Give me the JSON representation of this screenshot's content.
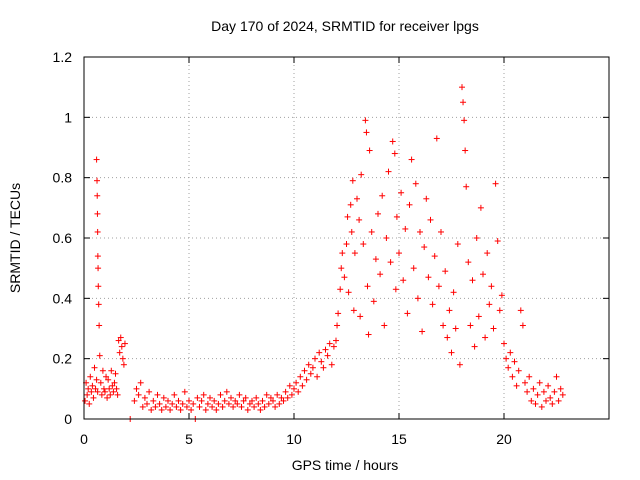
{
  "chart_data": {
    "type": "scatter",
    "title": "Day 170 of 2024, SRMTID for receiver lpgs",
    "xlabel": "GPS time / hours",
    "ylabel": "SRMTID / TECUs",
    "xlim": [
      0,
      25
    ],
    "ylim": [
      0,
      1.2
    ],
    "xticks": [
      0,
      5,
      10,
      15,
      20
    ],
    "xtick_labels": [
      "0",
      "5",
      "10",
      "15",
      "20"
    ],
    "yticks": [
      0,
      0.2,
      0.4,
      0.6,
      0.8,
      1.0,
      1.2
    ],
    "ytick_labels": [
      "0",
      "0.2",
      "0.4",
      "0.6",
      "0.8",
      "1",
      "1.2"
    ],
    "grid": true,
    "marker": "plus",
    "color": "#ff0000",
    "series": [
      {
        "name": "SRMTID",
        "points": [
          [
            0.05,
            0.06
          ],
          [
            0.1,
            0.12
          ],
          [
            0.15,
            0.08
          ],
          [
            0.2,
            0.1
          ],
          [
            0.25,
            0.05
          ],
          [
            0.3,
            0.14
          ],
          [
            0.35,
            0.09
          ],
          [
            0.4,
            0.11
          ],
          [
            0.45,
            0.07
          ],
          [
            0.5,
            0.17
          ],
          [
            0.55,
            0.1
          ],
          [
            0.6,
            0.13
          ],
          [
            0.65,
            0.09
          ],
          [
            0.6,
            0.86
          ],
          [
            0.62,
            0.79
          ],
          [
            0.63,
            0.74
          ],
          [
            0.64,
            0.68
          ],
          [
            0.65,
            0.62
          ],
          [
            0.66,
            0.54
          ],
          [
            0.67,
            0.5
          ],
          [
            0.68,
            0.44
          ],
          [
            0.7,
            0.38
          ],
          [
            0.72,
            0.31
          ],
          [
            0.75,
            0.21
          ],
          [
            0.8,
            0.12
          ],
          [
            0.85,
            0.08
          ],
          [
            0.9,
            0.16
          ],
          [
            0.95,
            0.1
          ],
          [
            1.0,
            0.09
          ],
          [
            1.05,
            0.14
          ],
          [
            1.1,
            0.07
          ],
          [
            1.15,
            0.13
          ],
          [
            1.2,
            0.1
          ],
          [
            1.25,
            0.08
          ],
          [
            1.3,
            0.16
          ],
          [
            1.35,
            0.11
          ],
          [
            1.4,
            0.09
          ],
          [
            1.45,
            0.12
          ],
          [
            1.5,
            0.15
          ],
          [
            1.55,
            0.1
          ],
          [
            1.6,
            0.08
          ],
          [
            1.65,
            0.26
          ],
          [
            1.7,
            0.22
          ],
          [
            1.75,
            0.27
          ],
          [
            1.8,
            0.24
          ],
          [
            1.85,
            0.2
          ],
          [
            1.9,
            0.18
          ],
          [
            1.95,
            0.25
          ],
          [
            2.2,
            0.0
          ],
          [
            2.4,
            0.06
          ],
          [
            2.5,
            0.1
          ],
          [
            2.6,
            0.08
          ],
          [
            2.7,
            0.12
          ],
          [
            2.8,
            0.04
          ],
          [
            2.9,
            0.07
          ],
          [
            3.0,
            0.05
          ],
          [
            3.1,
            0.09
          ],
          [
            3.2,
            0.03
          ],
          [
            3.3,
            0.06
          ],
          [
            3.4,
            0.04
          ],
          [
            3.5,
            0.08
          ],
          [
            3.6,
            0.05
          ],
          [
            3.7,
            0.03
          ],
          [
            3.8,
            0.07
          ],
          [
            3.9,
            0.04
          ],
          [
            4.0,
            0.06
          ],
          [
            4.1,
            0.03
          ],
          [
            4.2,
            0.05
          ],
          [
            4.3,
            0.08
          ],
          [
            4.4,
            0.04
          ],
          [
            4.5,
            0.06
          ],
          [
            4.6,
            0.03
          ],
          [
            4.7,
            0.05
          ],
          [
            4.8,
            0.09
          ],
          [
            4.9,
            0.04
          ],
          [
            5.0,
            0.06
          ],
          [
            5.1,
            0.03
          ],
          [
            5.2,
            0.05
          ],
          [
            5.3,
            0.0
          ],
          [
            5.4,
            0.07
          ],
          [
            5.5,
            0.04
          ],
          [
            5.6,
            0.06
          ],
          [
            5.7,
            0.08
          ],
          [
            5.8,
            0.03
          ],
          [
            5.9,
            0.05
          ],
          [
            6.0,
            0.07
          ],
          [
            6.1,
            0.04
          ],
          [
            6.2,
            0.06
          ],
          [
            6.3,
            0.03
          ],
          [
            6.4,
            0.05
          ],
          [
            6.5,
            0.08
          ],
          [
            6.6,
            0.04
          ],
          [
            6.7,
            0.06
          ],
          [
            6.8,
            0.09
          ],
          [
            6.9,
            0.05
          ],
          [
            7.0,
            0.07
          ],
          [
            7.1,
            0.04
          ],
          [
            7.2,
            0.06
          ],
          [
            7.3,
            0.05
          ],
          [
            7.4,
            0.08
          ],
          [
            7.5,
            0.04
          ],
          [
            7.6,
            0.06
          ],
          [
            7.7,
            0.07
          ],
          [
            7.8,
            0.03
          ],
          [
            7.9,
            0.05
          ],
          [
            8.0,
            0.06
          ],
          [
            8.1,
            0.04
          ],
          [
            8.2,
            0.07
          ],
          [
            8.3,
            0.05
          ],
          [
            8.4,
            0.03
          ],
          [
            8.5,
            0.06
          ],
          [
            8.6,
            0.04
          ],
          [
            8.7,
            0.08
          ],
          [
            8.8,
            0.05
          ],
          [
            8.9,
            0.07
          ],
          [
            9.0,
            0.06
          ],
          [
            9.1,
            0.04
          ],
          [
            9.2,
            0.08
          ],
          [
            9.3,
            0.05
          ],
          [
            9.4,
            0.07
          ],
          [
            9.5,
            0.06
          ],
          [
            9.6,
            0.09
          ],
          [
            9.7,
            0.07
          ],
          [
            9.8,
            0.11
          ],
          [
            9.9,
            0.08
          ],
          [
            10.0,
            0.1
          ],
          [
            10.1,
            0.12
          ],
          [
            10.2,
            0.09
          ],
          [
            10.3,
            0.14
          ],
          [
            10.4,
            0.11
          ],
          [
            10.5,
            0.16
          ],
          [
            10.6,
            0.13
          ],
          [
            10.7,
            0.18
          ],
          [
            10.8,
            0.15
          ],
          [
            10.9,
            0.17
          ],
          [
            11.0,
            0.2
          ],
          [
            11.1,
            0.14
          ],
          [
            11.2,
            0.22
          ],
          [
            11.3,
            0.19
          ],
          [
            11.4,
            0.17
          ],
          [
            11.5,
            0.23
          ],
          [
            11.6,
            0.21
          ],
          [
            11.7,
            0.25
          ],
          [
            11.8,
            0.18
          ],
          [
            11.9,
            0.24
          ],
          [
            12.0,
            0.26
          ],
          [
            12.05,
            0.31
          ],
          [
            12.1,
            0.35
          ],
          [
            12.2,
            0.43
          ],
          [
            12.25,
            0.5
          ],
          [
            12.3,
            0.55
          ],
          [
            12.4,
            0.47
          ],
          [
            12.5,
            0.58
          ],
          [
            12.55,
            0.67
          ],
          [
            12.6,
            0.42
          ],
          [
            12.7,
            0.71
          ],
          [
            12.75,
            0.62
          ],
          [
            12.8,
            0.79
          ],
          [
            12.85,
            0.36
          ],
          [
            12.9,
            0.55
          ],
          [
            13.0,
            0.73
          ],
          [
            13.1,
            0.66
          ],
          [
            13.15,
            0.34
          ],
          [
            13.2,
            0.81
          ],
          [
            13.3,
            0.58
          ],
          [
            13.4,
            0.99
          ],
          [
            13.45,
            0.95
          ],
          [
            13.5,
            0.44
          ],
          [
            13.55,
            0.28
          ],
          [
            13.6,
            0.89
          ],
          [
            13.7,
            0.62
          ],
          [
            13.8,
            0.39
          ],
          [
            13.9,
            0.53
          ],
          [
            14.0,
            0.68
          ],
          [
            14.1,
            0.48
          ],
          [
            14.2,
            0.74
          ],
          [
            14.3,
            0.31
          ],
          [
            14.4,
            0.6
          ],
          [
            14.5,
            0.82
          ],
          [
            14.6,
            0.52
          ],
          [
            14.7,
            0.92
          ],
          [
            14.8,
            0.88
          ],
          [
            14.85,
            0.43
          ],
          [
            14.9,
            0.67
          ],
          [
            15.0,
            0.55
          ],
          [
            15.1,
            0.75
          ],
          [
            15.2,
            0.46
          ],
          [
            15.3,
            0.63
          ],
          [
            15.4,
            0.35
          ],
          [
            15.5,
            0.71
          ],
          [
            15.6,
            0.86
          ],
          [
            15.7,
            0.5
          ],
          [
            15.8,
            0.78
          ],
          [
            15.9,
            0.4
          ],
          [
            16.0,
            0.62
          ],
          [
            16.1,
            0.29
          ],
          [
            16.2,
            0.57
          ],
          [
            16.3,
            0.73
          ],
          [
            16.4,
            0.47
          ],
          [
            16.5,
            0.66
          ],
          [
            16.6,
            0.38
          ],
          [
            16.7,
            0.54
          ],
          [
            16.8,
            0.93
          ],
          [
            16.9,
            0.44
          ],
          [
            17.0,
            0.62
          ],
          [
            17.1,
            0.31
          ],
          [
            17.2,
            0.49
          ],
          [
            17.3,
            0.27
          ],
          [
            17.4,
            0.36
          ],
          [
            17.5,
            0.22
          ],
          [
            17.6,
            0.42
          ],
          [
            17.7,
            0.3
          ],
          [
            17.8,
            0.58
          ],
          [
            17.9,
            0.18
          ],
          [
            18.0,
            1.1
          ],
          [
            18.05,
            1.05
          ],
          [
            18.1,
            0.99
          ],
          [
            18.15,
            0.89
          ],
          [
            18.2,
            0.77
          ],
          [
            18.3,
            0.52
          ],
          [
            18.4,
            0.31
          ],
          [
            18.5,
            0.46
          ],
          [
            18.6,
            0.24
          ],
          [
            18.7,
            0.6
          ],
          [
            18.8,
            0.34
          ],
          [
            18.9,
            0.7
          ],
          [
            19.0,
            0.48
          ],
          [
            19.1,
            0.27
          ],
          [
            19.2,
            0.55
          ],
          [
            19.3,
            0.38
          ],
          [
            19.4,
            0.44
          ],
          [
            19.5,
            0.3
          ],
          [
            19.6,
            0.78
          ],
          [
            19.7,
            0.59
          ],
          [
            19.8,
            0.36
          ],
          [
            19.9,
            0.41
          ],
          [
            20.0,
            0.25
          ],
          [
            20.1,
            0.2
          ],
          [
            20.2,
            0.17
          ],
          [
            20.3,
            0.22
          ],
          [
            20.4,
            0.14
          ],
          [
            20.5,
            0.19
          ],
          [
            20.6,
            0.11
          ],
          [
            20.7,
            0.16
          ],
          [
            20.8,
            0.36
          ],
          [
            20.9,
            0.31
          ],
          [
            21.0,
            0.12
          ],
          [
            21.1,
            0.09
          ],
          [
            21.2,
            0.14
          ],
          [
            21.3,
            0.06
          ],
          [
            21.4,
            0.1
          ],
          [
            21.5,
            0.05
          ],
          [
            21.6,
            0.08
          ],
          [
            21.7,
            0.12
          ],
          [
            21.8,
            0.04
          ],
          [
            21.9,
            0.09
          ],
          [
            22.0,
            0.06
          ],
          [
            22.1,
            0.11
          ],
          [
            22.2,
            0.07
          ],
          [
            22.3,
            0.05
          ],
          [
            22.4,
            0.09
          ],
          [
            22.5,
            0.14
          ],
          [
            22.6,
            0.06
          ],
          [
            22.7,
            0.1
          ],
          [
            22.8,
            0.08
          ]
        ]
      }
    ]
  }
}
